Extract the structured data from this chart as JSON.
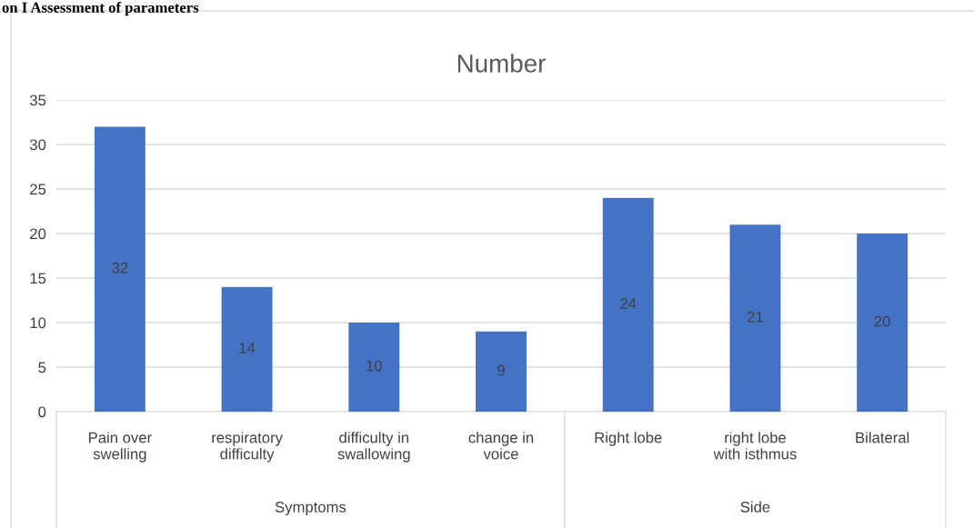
{
  "chart_data": {
    "type": "bar",
    "title": "Number",
    "categories": [
      "Pain over\nswelling",
      "respiratory\ndifficulty",
      "difficulty in\nswallowing",
      "change in\nvoice",
      "Right lobe",
      "right lobe\nwith isthmus",
      "Bilateral"
    ],
    "values": [
      32,
      14,
      10,
      9,
      24,
      21,
      20
    ],
    "color": "#4472c4",
    "ylim": [
      0,
      35
    ],
    "yticks": [
      0,
      5,
      10,
      15,
      20,
      25,
      30,
      35
    ],
    "grid": "y",
    "data_labels": true,
    "annotations": [
      "on I Assessment of parameters",
      "Symptoms",
      "Side"
    ]
  }
}
